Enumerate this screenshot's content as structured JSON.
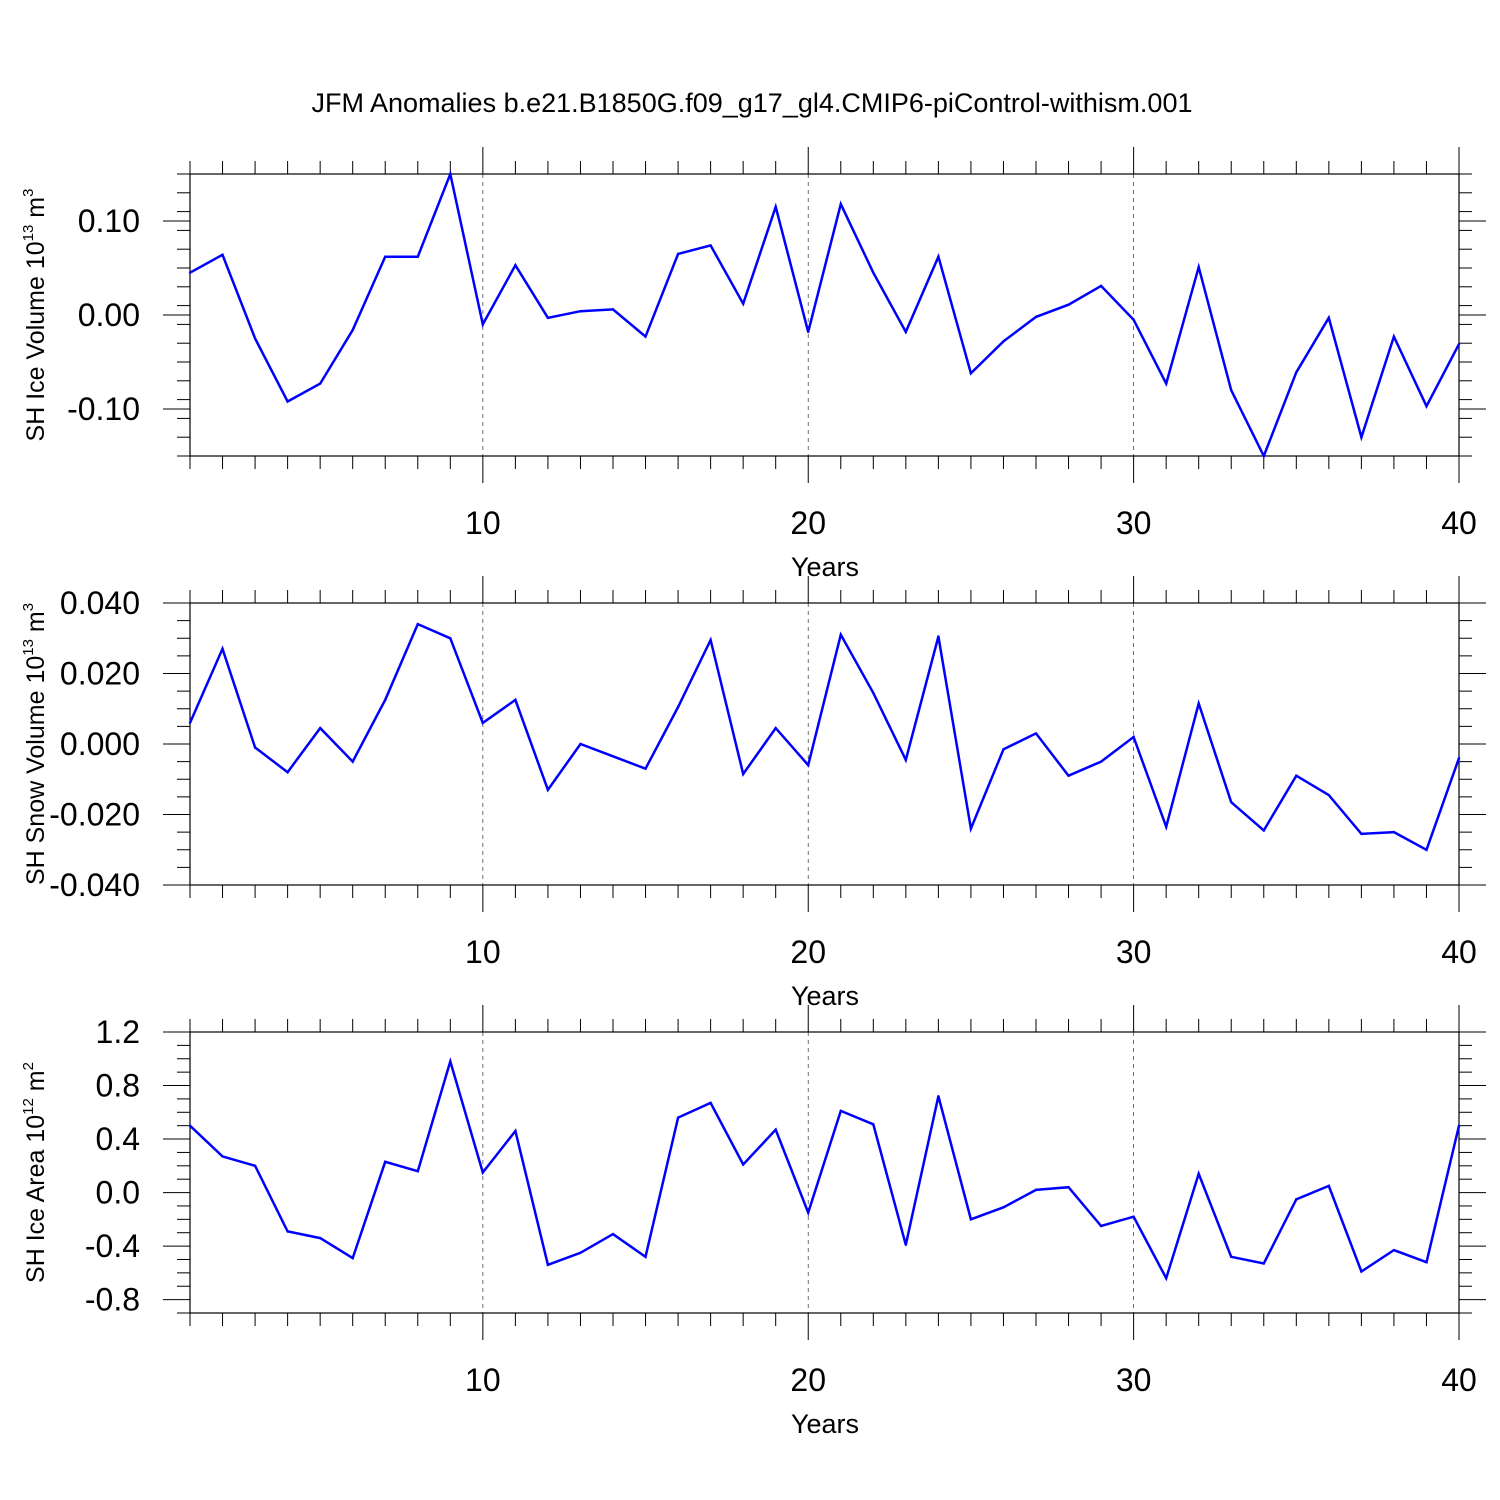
{
  "title": "JFM Anomalies b.e21.B1850G.f09_g17_gl4.CMIP6-piControl-withism.001",
  "colors": {
    "line": "#0000ff",
    "axis": "#000000",
    "grid": "#000000",
    "background": "#ffffff"
  },
  "chart_data": [
    {
      "type": "line",
      "panel": "top",
      "ylabel": "SH Ice Volume 10",
      "ylabel_exp": "13",
      "ylabel_unit": " m",
      "ylabel_unit_exp": "3",
      "xlabel": "Years",
      "xlim": [
        1,
        40
      ],
      "ylim": [
        -0.15,
        0.15
      ],
      "xticks": [
        10,
        20,
        30,
        40
      ],
      "xtick_labels": [
        "10",
        "20",
        "30",
        "40"
      ],
      "yticks": [
        -0.1,
        0.0,
        0.1
      ],
      "ytick_labels": [
        "-0.10",
        "0.00",
        "0.10"
      ],
      "y_minor_step": 0.02,
      "grid": "dashed vertical at major x ticks",
      "series": [
        {
          "name": "SH Ice Volume",
          "x": [
            1,
            2,
            3,
            4,
            5,
            6,
            7,
            8,
            9,
            10,
            11,
            12,
            13,
            14,
            15,
            16,
            17,
            18,
            19,
            20,
            21,
            22,
            23,
            24,
            25,
            26,
            27,
            28,
            29,
            30,
            31,
            32,
            33,
            34,
            35,
            36,
            37,
            38,
            39,
            40
          ],
          "values": [
            0.045,
            0.064,
            -0.025,
            -0.092,
            -0.073,
            -0.016,
            0.062,
            0.062,
            0.15,
            -0.01,
            0.053,
            -0.003,
            0.004,
            0.006,
            -0.023,
            0.065,
            0.074,
            0.012,
            0.115,
            -0.018,
            0.118,
            0.045,
            -0.018,
            0.062,
            -0.062,
            -0.028,
            -0.002,
            0.011,
            0.031,
            -0.005,
            -0.073,
            0.051,
            -0.08,
            -0.15,
            -0.061,
            -0.003,
            -0.13,
            -0.023,
            -0.097,
            -0.031
          ]
        }
      ]
    },
    {
      "type": "line",
      "panel": "middle",
      "ylabel": "SH Snow Volume 10",
      "ylabel_exp": "13",
      "ylabel_unit": " m",
      "ylabel_unit_exp": "3",
      "xlabel": "Years",
      "xlim": [
        1,
        40
      ],
      "ylim": [
        -0.04,
        0.04
      ],
      "xticks": [
        10,
        20,
        30,
        40
      ],
      "xtick_labels": [
        "10",
        "20",
        "30",
        "40"
      ],
      "yticks": [
        -0.04,
        -0.02,
        0.0,
        0.02,
        0.04
      ],
      "ytick_labels": [
        "-0.040",
        "-0.020",
        "0.000",
        "0.020",
        "0.040"
      ],
      "y_minor_step": 0.005,
      "grid": "dashed vertical at major x ticks",
      "series": [
        {
          "name": "SH Snow Volume",
          "x": [
            1,
            2,
            3,
            4,
            5,
            6,
            7,
            8,
            9,
            10,
            11,
            12,
            13,
            14,
            15,
            16,
            17,
            18,
            19,
            20,
            21,
            22,
            23,
            24,
            25,
            26,
            27,
            28,
            29,
            30,
            31,
            32,
            33,
            34,
            35,
            36,
            37,
            38,
            39,
            40
          ],
          "values": [
            0.006,
            0.027,
            -0.001,
            -0.008,
            0.0045,
            -0.005,
            0.0125,
            0.034,
            0.03,
            0.006,
            0.0125,
            -0.013,
            0.0,
            -0.0035,
            -0.007,
            0.0105,
            0.0295,
            -0.0085,
            0.0045,
            -0.006,
            0.031,
            0.0145,
            -0.0045,
            0.0305,
            -0.024,
            -0.0015,
            0.003,
            -0.009,
            -0.005,
            0.002,
            -0.0235,
            0.0115,
            -0.0165,
            -0.0245,
            -0.009,
            -0.0145,
            -0.0255,
            -0.025,
            -0.03,
            -0.004
          ]
        }
      ]
    },
    {
      "type": "line",
      "panel": "bottom",
      "ylabel": "SH Ice Area 10",
      "ylabel_exp": "12",
      "ylabel_unit": " m",
      "ylabel_unit_exp": "2",
      "xlabel": "Years",
      "xlim": [
        1,
        40
      ],
      "ylim": [
        -0.9,
        1.2
      ],
      "xticks": [
        10,
        20,
        30,
        40
      ],
      "xtick_labels": [
        "10",
        "20",
        "30",
        "40"
      ],
      "yticks": [
        -0.8,
        -0.4,
        0.0,
        0.4,
        0.8,
        1.2
      ],
      "ytick_labels": [
        "-0.8",
        "-0.4",
        "0.0",
        "0.4",
        "0.8",
        "1.2"
      ],
      "y_minor_step": 0.1,
      "grid": "dashed vertical at major x ticks",
      "series": [
        {
          "name": "SH Ice Area",
          "x": [
            1,
            2,
            3,
            4,
            5,
            6,
            7,
            8,
            9,
            10,
            11,
            12,
            13,
            14,
            15,
            16,
            17,
            18,
            19,
            20,
            21,
            22,
            23,
            24,
            25,
            26,
            27,
            28,
            29,
            30,
            31,
            32,
            33,
            34,
            35,
            36,
            37,
            38,
            39,
            40
          ],
          "values": [
            0.5,
            0.27,
            0.2,
            -0.29,
            -0.34,
            -0.49,
            0.23,
            0.16,
            0.98,
            0.15,
            0.46,
            -0.54,
            -0.45,
            -0.31,
            -0.48,
            0.56,
            0.67,
            0.21,
            0.47,
            -0.15,
            0.61,
            0.51,
            -0.39,
            0.72,
            -0.2,
            -0.11,
            0.02,
            0.04,
            -0.25,
            -0.18,
            -0.64,
            0.14,
            -0.48,
            -0.53,
            -0.05,
            0.05,
            -0.59,
            -0.43,
            -0.52,
            0.5
          ]
        }
      ]
    }
  ]
}
